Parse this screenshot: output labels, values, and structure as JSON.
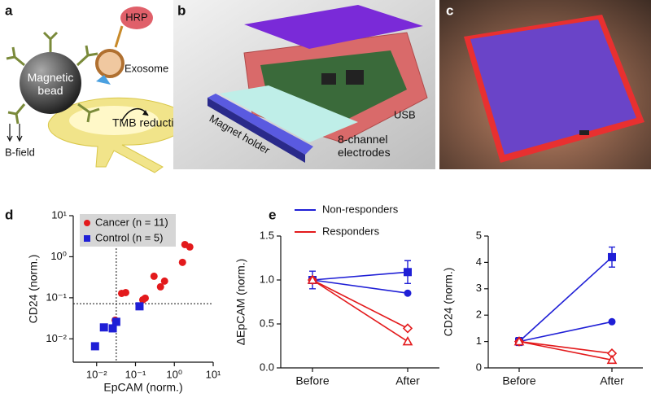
{
  "panel_a": {
    "label": "a",
    "hrp": "HRP",
    "bead": [
      "Magnetic",
      "bead"
    ],
    "exosome": "Exosome",
    "tmb": "TMB reduction",
    "field": "B-field"
  },
  "panel_b": {
    "label": "b",
    "usb": "USB",
    "holder": "Magnet holder",
    "electrodes": [
      "8-channel",
      "electrodes"
    ]
  },
  "panel_c": {
    "label": "c"
  },
  "chart_data": [
    {
      "type": "scatter",
      "panel_label": "d",
      "xlabel": "EpCAM (norm.)",
      "ylabel": "CD24 (norm.)",
      "xscale": "log",
      "yscale": "log",
      "xlim": [
        0.0025,
        10
      ],
      "ylim": [
        0.0027,
        10
      ],
      "xticks": [
        {
          "value": 0.01,
          "label": "10⁻²"
        },
        {
          "value": 0.1,
          "label": "10⁻¹"
        },
        {
          "value": 1,
          "label": "10⁰"
        },
        {
          "value": 10,
          "label": "10¹"
        }
      ],
      "yticks": [
        {
          "value": 0.01,
          "label": "10⁻²"
        },
        {
          "value": 0.1,
          "label": "10⁻¹"
        },
        {
          "value": 1,
          "label": "10⁰"
        },
        {
          "value": 10,
          "label": "10¹"
        }
      ],
      "thresholds": {
        "x": 0.032,
        "y": 0.072
      },
      "legend": "upper left",
      "series": [
        {
          "name": "Cancer (n = 11)",
          "color": "#e31a1c",
          "marker": "circle",
          "x": [
            0.03,
            0.044,
            0.056,
            0.154,
            0.178,
            0.3,
            0.44,
            0.56,
            1.62,
            1.87,
            2.5
          ],
          "values": [
            0.0285,
            0.128,
            0.134,
            0.089,
            0.098,
            0.335,
            0.185,
            0.255,
            0.73,
            1.98,
            1.73
          ]
        },
        {
          "name": "Control (n = 5)",
          "color": "#1f1fd6",
          "marker": "square",
          "x": [
            0.0091,
            0.0154,
            0.026,
            0.032,
            0.127
          ],
          "values": [
            0.0066,
            0.019,
            0.018,
            0.026,
            0.062
          ]
        }
      ]
    },
    {
      "type": "line",
      "panel_label": "e",
      "categories": [
        "Before",
        "After"
      ],
      "ylabel": "ΔEpCAM (norm.)",
      "ylim": [
        0,
        1.5
      ],
      "yticks": [
        {
          "value": 0,
          "label": "0.0"
        },
        0.5,
        {
          "value": 1,
          "label": "1.0"
        },
        1.5
      ],
      "series": [
        {
          "name": "Non-responders",
          "color": "#1f1fd6",
          "marker": "square",
          "values": [
            1.0,
            1.09
          ],
          "errors": [
            0.1,
            0.13
          ]
        },
        {
          "color": "#1f1fd6",
          "marker": "circle",
          "values": [
            1.0,
            0.85
          ]
        },
        {
          "name": "Responders",
          "color": "#e31a1c",
          "marker": "diamond-open",
          "values": [
            1.0,
            0.45
          ]
        },
        {
          "color": "#e31a1c",
          "marker": "triangle-open",
          "values": [
            1.0,
            0.3
          ]
        }
      ]
    },
    {
      "type": "line",
      "categories": [
        "Before",
        "After"
      ],
      "ylabel": "CD24 (norm.)",
      "ylim": [
        0,
        5
      ],
      "yticks": [
        0,
        1,
        2,
        3,
        4,
        5
      ],
      "series": [
        {
          "color": "#1f1fd6",
          "marker": "square",
          "values": [
            1.0,
            4.2
          ],
          "errors": [
            0.15,
            0.38
          ]
        },
        {
          "color": "#1f1fd6",
          "marker": "circle",
          "values": [
            1.0,
            1.75
          ]
        },
        {
          "color": "#e31a1c",
          "marker": "diamond-open",
          "values": [
            1.0,
            0.55
          ]
        },
        {
          "color": "#e31a1c",
          "marker": "triangle-open",
          "values": [
            1.0,
            0.3
          ]
        }
      ]
    }
  ]
}
